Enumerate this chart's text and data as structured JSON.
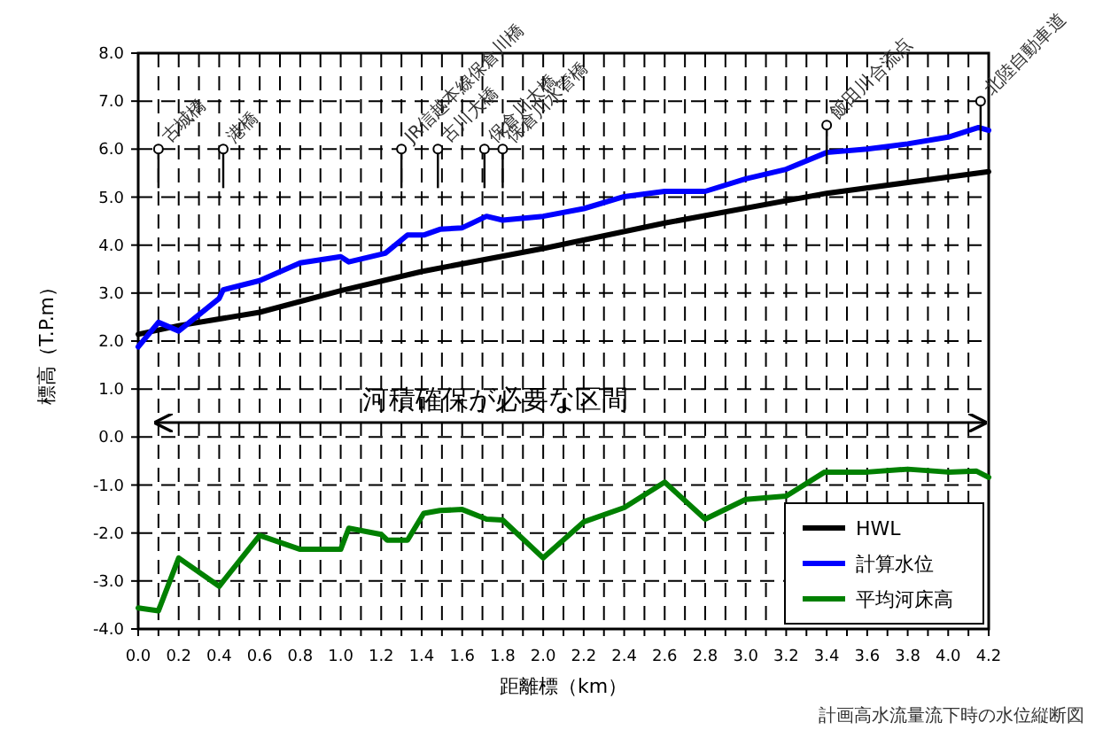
{
  "chart_data": {
    "type": "line",
    "xlabel": "距離標（km）",
    "ylabel": "標高（T.P.m）",
    "xlim": [
      0,
      4.2
    ],
    "ylim": [
      -4,
      8
    ],
    "xticks": [
      {
        "value": 0,
        "label": "0.0"
      },
      {
        "value": 0.1,
        "label": null
      },
      {
        "value": 0.2,
        "label": "0.2"
      },
      {
        "value": 0.3,
        "label": null
      },
      {
        "value": 0.4,
        "label": "0.4"
      },
      {
        "value": 0.5,
        "label": null
      },
      {
        "value": 0.6,
        "label": "0.6"
      },
      {
        "value": 0.7,
        "label": null
      },
      {
        "value": 0.8,
        "label": "0.8"
      },
      {
        "value": 0.9,
        "label": null
      },
      {
        "value": 1.0,
        "label": "1.0"
      },
      {
        "value": 1.1,
        "label": null
      },
      {
        "value": 1.2,
        "label": "1.2"
      },
      {
        "value": 1.3,
        "label": null
      },
      {
        "value": 1.4,
        "label": "1.4"
      },
      {
        "value": 1.5,
        "label": null
      },
      {
        "value": 1.6,
        "label": "1.6"
      },
      {
        "value": 1.7,
        "label": null
      },
      {
        "value": 1.8,
        "label": "1.8"
      },
      {
        "value": 1.9,
        "label": null
      },
      {
        "value": 2.0,
        "label": "2.0"
      },
      {
        "value": 2.1,
        "label": null
      },
      {
        "value": 2.2,
        "label": "2.2"
      },
      {
        "value": 2.3,
        "label": null
      },
      {
        "value": 2.4,
        "label": "2.4"
      },
      {
        "value": 2.5,
        "label": null
      },
      {
        "value": 2.6,
        "label": "2.6"
      },
      {
        "value": 2.7,
        "label": null
      },
      {
        "value": 2.8,
        "label": "2.8"
      },
      {
        "value": 2.9,
        "label": null
      },
      {
        "value": 3.0,
        "label": "3.0"
      },
      {
        "value": 3.1,
        "label": null
      },
      {
        "value": 3.2,
        "label": "3.2"
      },
      {
        "value": 3.3,
        "label": null
      },
      {
        "value": 3.4,
        "label": "3.4"
      },
      {
        "value": 3.5,
        "label": null
      },
      {
        "value": 3.6,
        "label": "3.6"
      },
      {
        "value": 3.7,
        "label": null
      },
      {
        "value": 3.8,
        "label": "3.8"
      },
      {
        "value": 3.9,
        "label": null
      },
      {
        "value": 4.0,
        "label": "4.0"
      },
      {
        "value": 4.1,
        "label": null
      },
      {
        "value": 4.2,
        "label": "4.2"
      }
    ],
    "yticks": [
      {
        "value": -4,
        "label": "-4.0"
      },
      {
        "value": -3,
        "label": "-3.0"
      },
      {
        "value": -2,
        "label": "-2.0"
      },
      {
        "value": -1,
        "label": "-1.0"
      },
      {
        "value": 0,
        "label": "0.0"
      },
      {
        "value": 1,
        "label": "1.0"
      },
      {
        "value": 2,
        "label": "2.0"
      },
      {
        "value": 3,
        "label": "3.0"
      },
      {
        "value": 4,
        "label": "4.0"
      },
      {
        "value": 5,
        "label": "5.0"
      },
      {
        "value": 6,
        "label": "6.0"
      },
      {
        "value": 7,
        "label": "7.0"
      },
      {
        "value": 8,
        "label": "8.0"
      }
    ],
    "grid": true,
    "legend": "bottom right",
    "line_style": "solid",
    "series": [
      {
        "name": "HWL",
        "color": "#000000",
        "x": [
          0,
          0.2,
          0.6,
          1.0,
          1.4,
          2.0,
          2.6,
          3.4,
          4.2
        ],
        "values": [
          2.14,
          2.32,
          2.6,
          3.05,
          3.45,
          3.93,
          4.46,
          5.08,
          5.53
        ]
      },
      {
        "name": "計算水位",
        "color": "#0000ff",
        "x": [
          0,
          0.1,
          0.2,
          0.4,
          0.42,
          0.6,
          0.8,
          1.0,
          1.04,
          1.22,
          1.33,
          1.41,
          1.49,
          1.6,
          1.72,
          1.8,
          2.0,
          2.2,
          2.4,
          2.6,
          2.8,
          3.0,
          3.2,
          3.4,
          3.6,
          3.8,
          4.0,
          4.15,
          4.2
        ],
        "values": [
          1.88,
          2.39,
          2.21,
          2.89,
          3.07,
          3.26,
          3.63,
          3.76,
          3.65,
          3.83,
          4.21,
          4.21,
          4.33,
          4.36,
          4.6,
          4.52,
          4.6,
          4.76,
          5.01,
          5.12,
          5.12,
          5.38,
          5.58,
          5.93,
          6.0,
          6.11,
          6.25,
          6.45,
          6.39
        ]
      },
      {
        "name": "平均河床高",
        "color": "#008000",
        "x": [
          0,
          0.1,
          0.2,
          0.4,
          0.6,
          0.8,
          1.0,
          1.04,
          1.2,
          1.23,
          1.33,
          1.41,
          1.49,
          1.6,
          1.72,
          1.8,
          2.0,
          2.2,
          2.4,
          2.6,
          2.8,
          3.0,
          3.2,
          3.39,
          3.6,
          3.8,
          4.0,
          4.14,
          4.2
        ],
        "values": [
          -3.56,
          -3.62,
          -2.52,
          -3.11,
          -2.05,
          -2.34,
          -2.34,
          -1.9,
          -2.03,
          -2.15,
          -2.15,
          -1.59,
          -1.53,
          -1.51,
          -1.71,
          -1.73,
          -2.52,
          -1.77,
          -1.47,
          -0.94,
          -1.71,
          -1.3,
          -1.23,
          -0.73,
          -0.73,
          -0.67,
          -0.73,
          -0.71,
          -0.84
        ]
      }
    ],
    "ref_lines": [
      {
        "axis": "y",
        "value": 0.3,
        "label": "河積確保が必要な区間",
        "color": "#000000"
      }
    ],
    "annotations": [
      {
        "text": "古城橋",
        "x": 0.1,
        "y": 6.0
      },
      {
        "text": "港橋",
        "x": 0.42,
        "y": 6.0
      },
      {
        "text": "JR信越本線保倉川橋",
        "x": 1.3,
        "y": 6.0
      },
      {
        "text": "古川大橋",
        "x": 1.48,
        "y": 6.0
      },
      {
        "text": "保倉川大橋",
        "x": 1.71,
        "y": 6.0
      },
      {
        "text": "保倉川水管橋",
        "x": 1.8,
        "y": 6.0
      },
      {
        "text": "飯田川合流点",
        "x": 3.4,
        "y": 6.5
      },
      {
        "text": "北陸自動車道",
        "x": 4.16,
        "y": 7.0
      },
      "計画高水流量流下時の水位縦断図"
    ]
  }
}
